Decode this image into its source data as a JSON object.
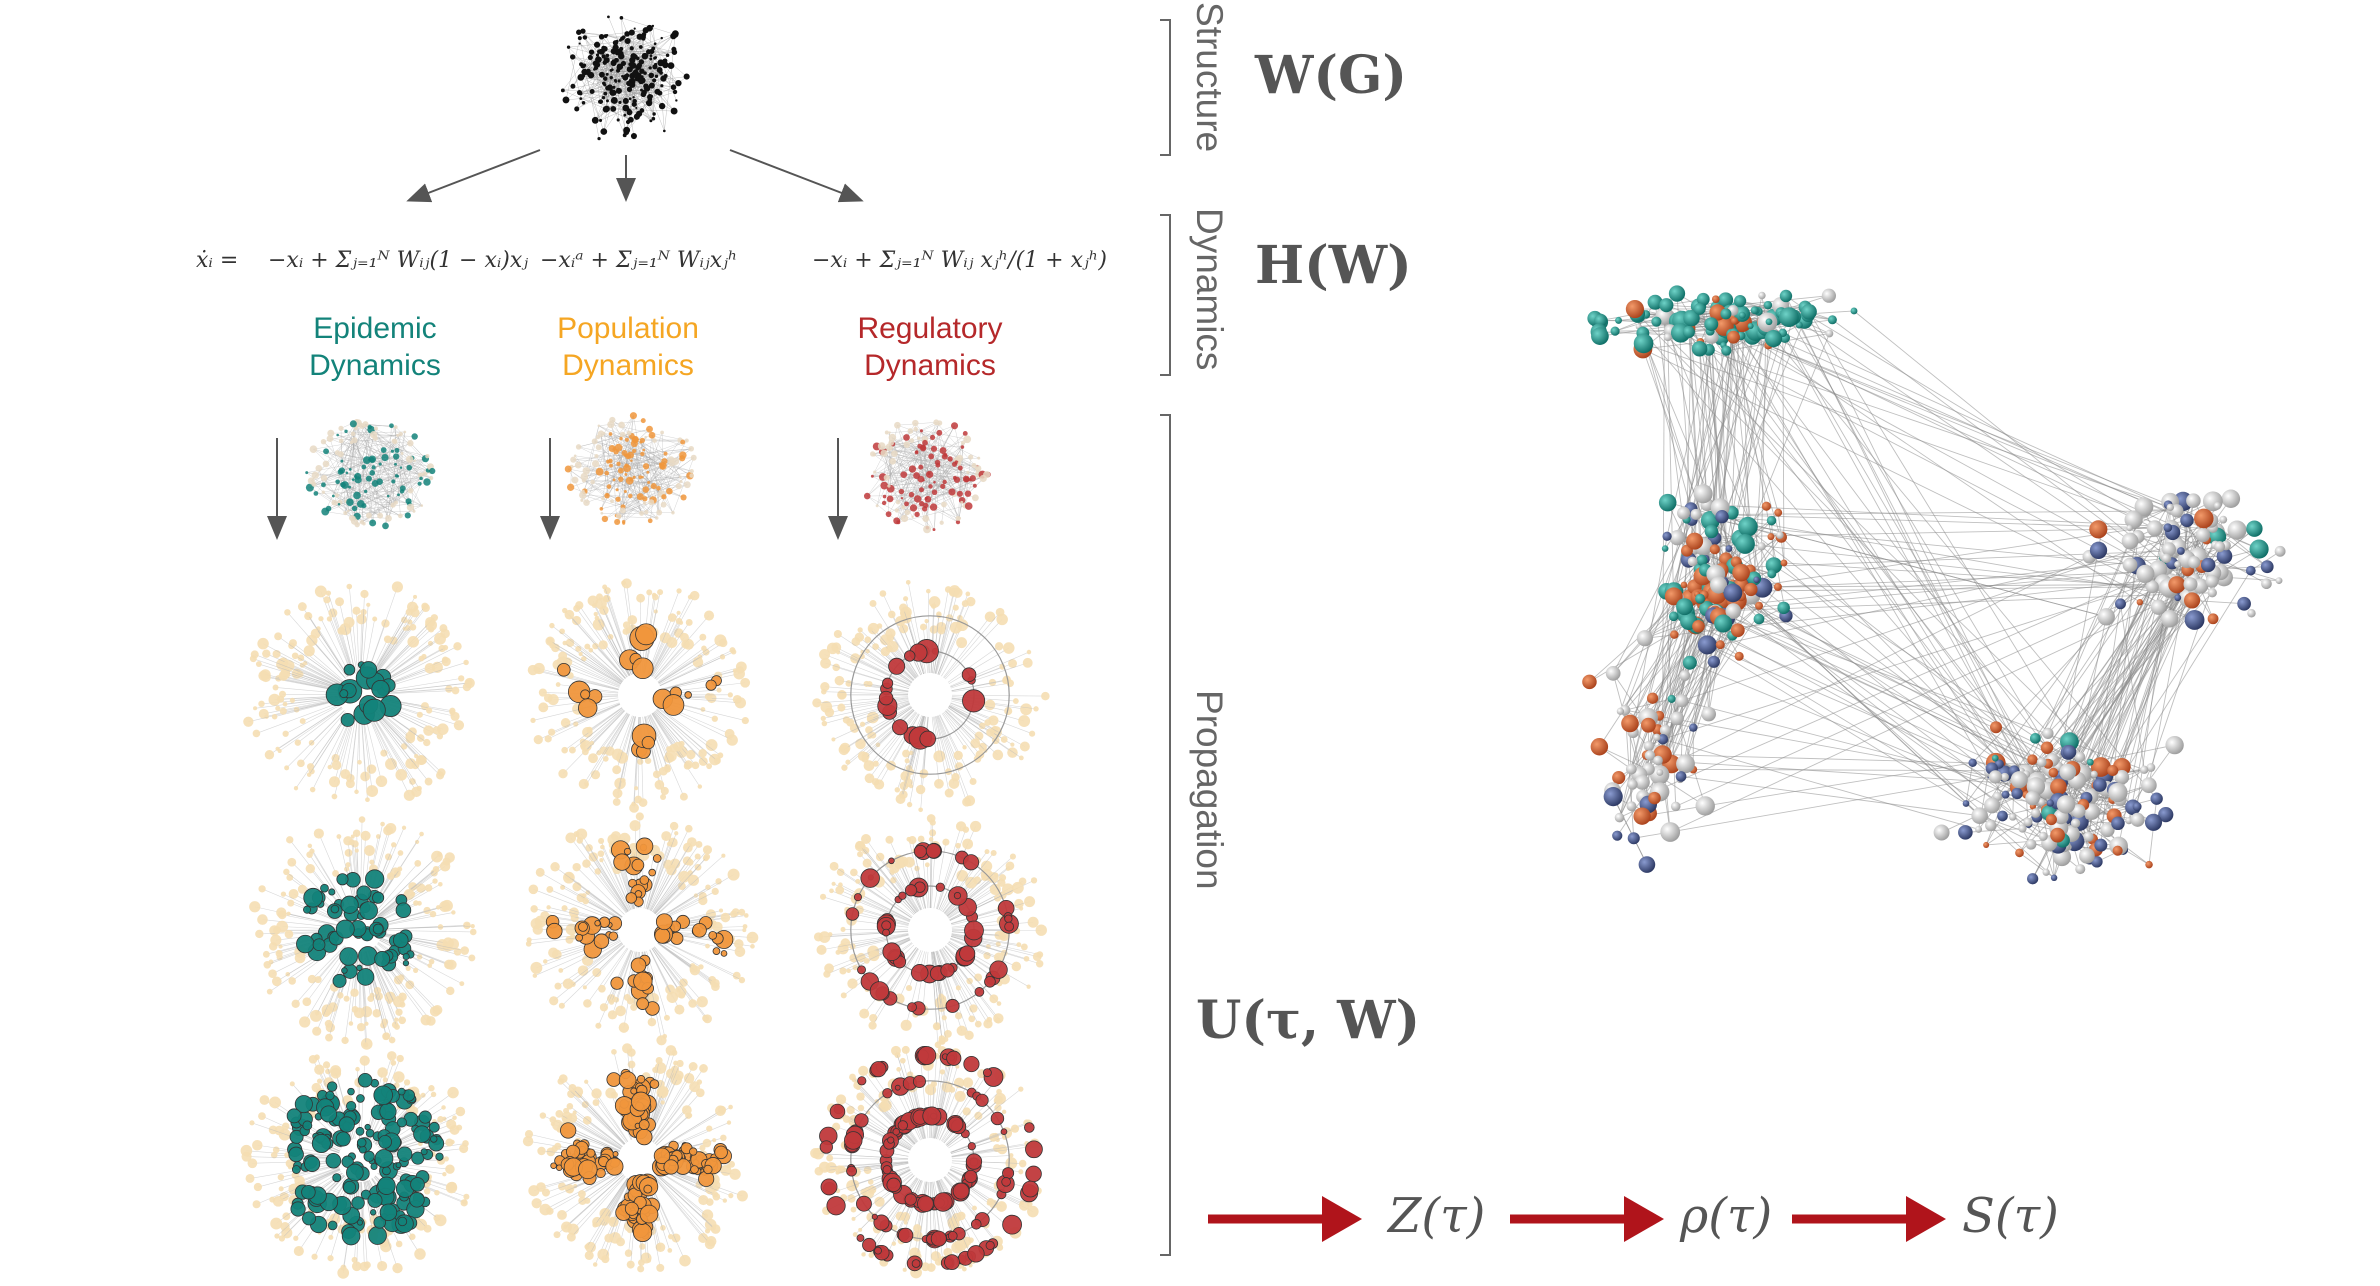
{
  "equations": {
    "lhs": "ẋᵢ =",
    "epidemic": "−xᵢ + Σⱼ₌₁ᴺ Wᵢⱼ(1 − xᵢ)xⱼ",
    "population": "−xᵢᵃ + Σⱼ₌₁ᴺ Wᵢⱼxⱼʰ",
    "regulatory": "−xᵢ + Σⱼ₌₁ᴺ Wᵢⱼ xⱼʰ/(1 + xⱼʰ)"
  },
  "columns": [
    {
      "line1": "Epidemic",
      "line2": "Dynamics",
      "color": "#13837a"
    },
    {
      "line1": "Population",
      "line2": "Dynamics",
      "color": "#f5a623"
    },
    {
      "line1": "Regulatory",
      "line2": "Dynamics",
      "color": "#b5282a"
    }
  ],
  "stages": {
    "structure": "Structure",
    "dynamics": "Dynamics",
    "propagation": "Propagation"
  },
  "symbols": {
    "structure": "W(G)",
    "dynamics": "H(W)",
    "propagation": "U(τ, W)"
  },
  "pipeline": [
    "Z(τ)",
    "ρ(τ)",
    "S(τ)"
  ],
  "colors": {
    "teal": "#13837a",
    "orange": "#f0963c",
    "red": "#c0393b",
    "beige": "#f5deb3",
    "arrow_red": "#b0141b",
    "navy": "#3a4a78",
    "grey_node": "#cfcfcf",
    "rust": "#c8501e"
  }
}
